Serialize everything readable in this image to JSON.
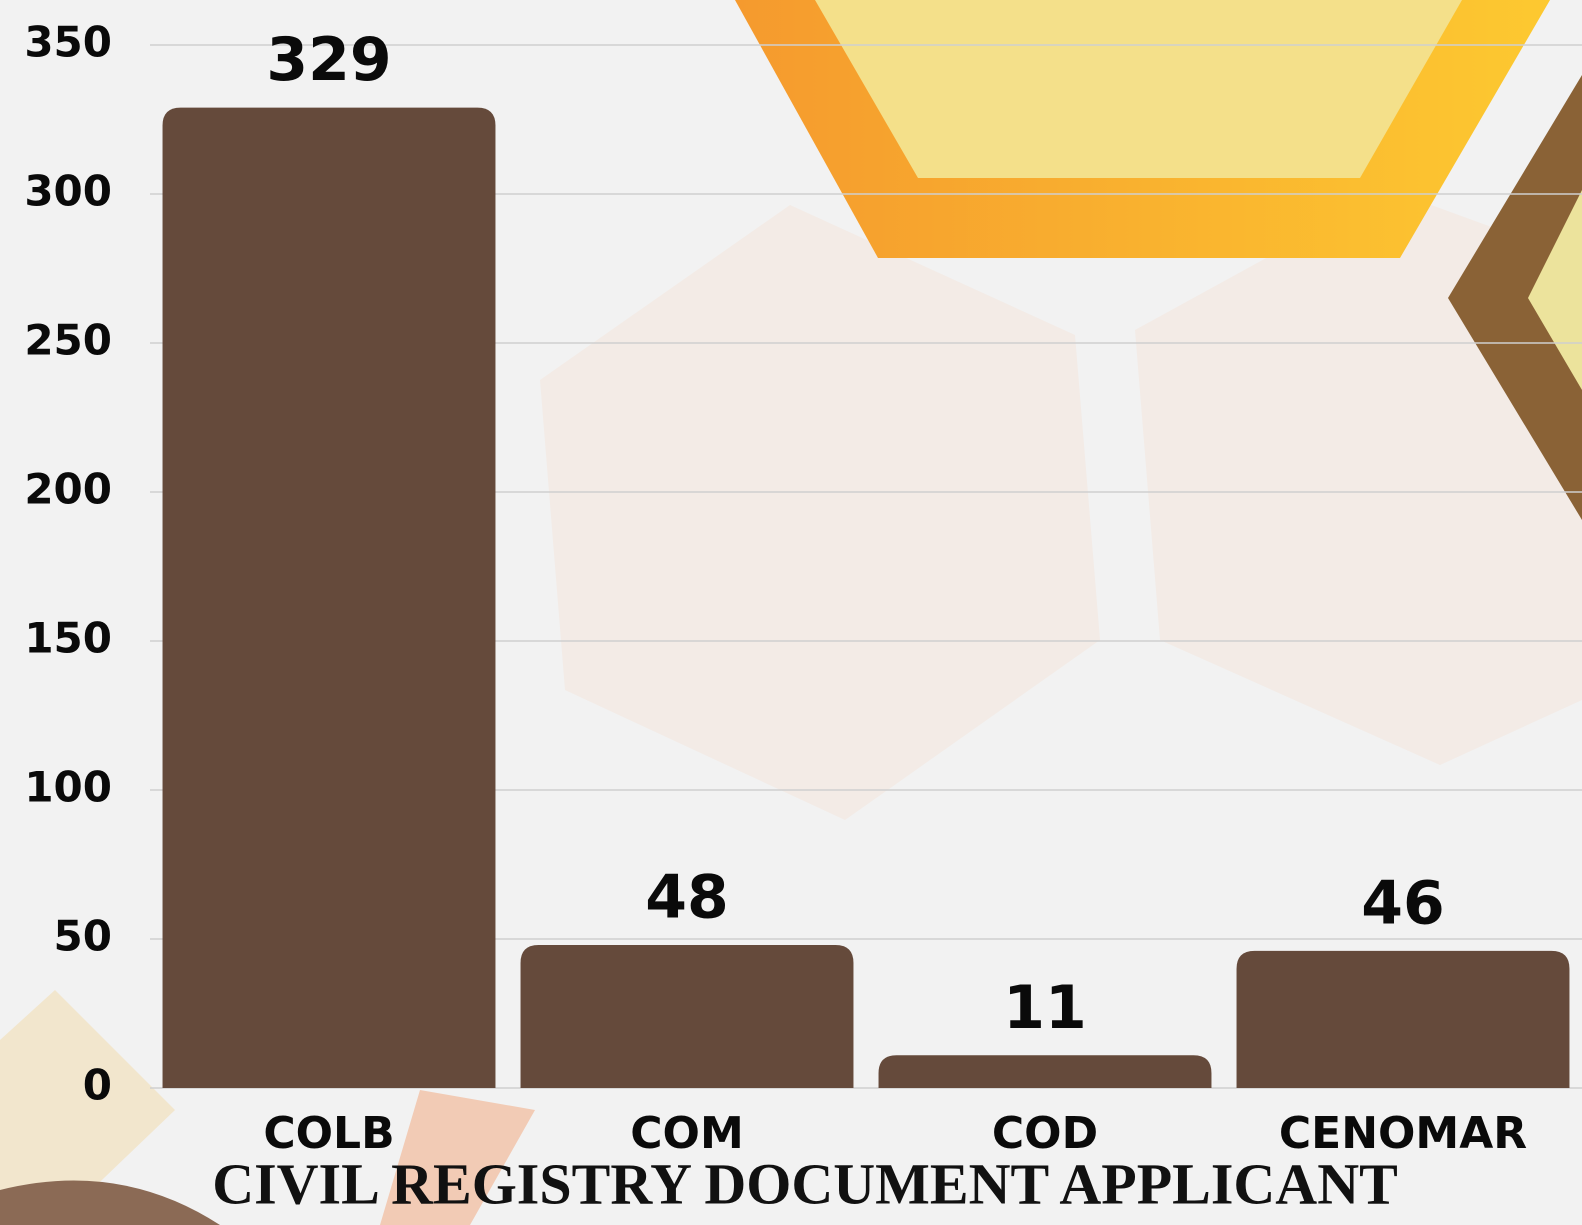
{
  "chart_data": {
    "type": "bar",
    "title": "CIVIL REGISTRY DOCUMENT APPLICANT",
    "categories": [
      "COLB",
      "COM",
      "COD",
      "CENOMAR"
    ],
    "values": [
      329,
      48,
      11,
      46
    ],
    "color": "#654a3b",
    "ylim": [
      0,
      350
    ],
    "yticks": [
      0,
      50,
      100,
      150,
      200,
      250,
      300,
      350
    ],
    "grid": true
  }
}
